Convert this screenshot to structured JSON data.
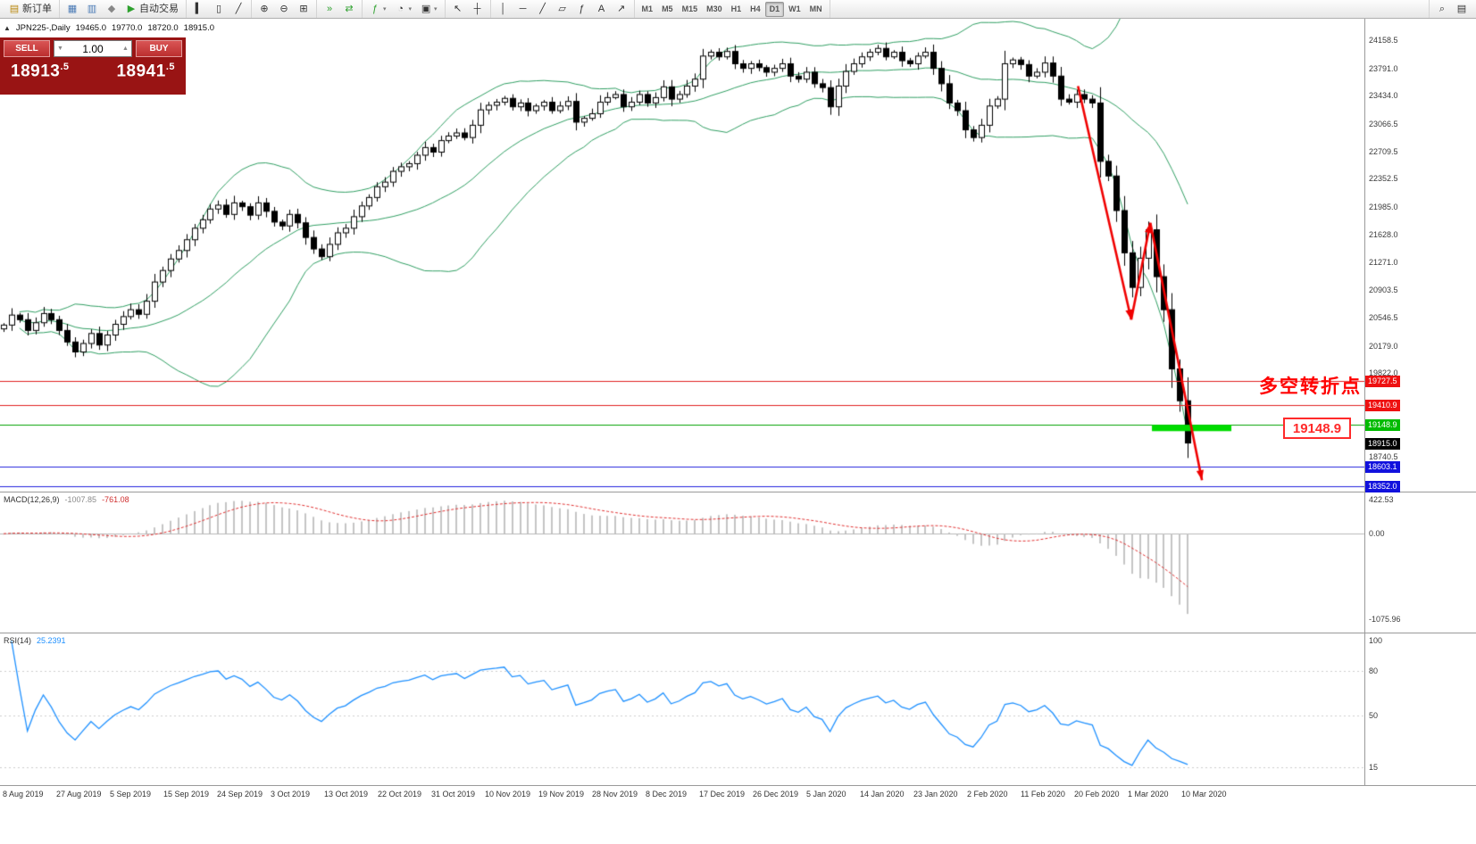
{
  "icons": {
    "one_click_toggle": "▲",
    "new_order": "▤",
    "charts": "▦",
    "profiles": "▥",
    "navigator": "◆",
    "autotrading": "▶",
    "chart_bars": "▍",
    "chart_candles": "▯",
    "chart_line": "╱",
    "zoom_in": "⊕",
    "zoom_out": "⊖",
    "tile_windows": "⊞",
    "auto_scroll": "»",
    "chart_shift": "⇄",
    "indicators": "ƒ",
    "periods": "◔",
    "templates": "▣",
    "cursor": "↖",
    "crosshair": "┼",
    "vline": "│",
    "hline": "─",
    "trendline": "╱",
    "channel": "▱",
    "fibonacci": "ƒ",
    "text": "A",
    "arrows": "↗",
    "search": "⌕",
    "mini_chart": "▤",
    "dropdown": "▾",
    "spinner_up": "▲",
    "spinner_down": "▼"
  },
  "toolbar": {
    "groups": [
      {
        "name": "order",
        "items": [
          {
            "name": "new-order-button",
            "icon": "new_order",
            "icon_color": "#b8860b",
            "label": "新订单"
          }
        ]
      },
      {
        "name": "windows",
        "items": [
          {
            "name": "charts-button",
            "icon": "charts",
            "icon_color": "#4a7ab5"
          },
          {
            "name": "profiles-button",
            "icon": "profiles",
            "icon_color": "#4a7ab5"
          },
          {
            "name": "navigator-button",
            "icon": "navigator",
            "icon_color": "#888888"
          },
          {
            "name": "autotrading-button",
            "icon": "autotrading",
            "icon_color": "#2ea12e",
            "label": "自动交易"
          }
        ]
      },
      {
        "name": "chart-types",
        "items": [
          {
            "name": "bars-chart-button",
            "icon": "chart_bars"
          },
          {
            "name": "candles-chart-button",
            "icon": "chart_candles"
          },
          {
            "name": "line-chart-button",
            "icon": "chart_line"
          }
        ]
      },
      {
        "name": "zoom",
        "items": [
          {
            "name": "zoom-in-button",
            "icon": "zoom_in"
          },
          {
            "name": "zoom-out-button",
            "icon": "zoom_out"
          },
          {
            "name": "tile-windows-button",
            "icon": "tile_windows"
          }
        ]
      },
      {
        "name": "scroll",
        "items": [
          {
            "name": "auto-scroll-button",
            "icon": "auto_scroll",
            "icon_color": "#2ea12e"
          },
          {
            "name": "chart-shift-button",
            "icon": "chart_shift",
            "icon_color": "#2ea12e"
          }
        ]
      },
      {
        "name": "insert",
        "items": [
          {
            "name": "indicators-button",
            "icon": "indicators",
            "icon_color": "#2ea12e",
            "dropdown": true
          },
          {
            "name": "periods-button",
            "icon": "periods",
            "dropdown": true
          },
          {
            "name": "templates-button",
            "icon": "templates",
            "dropdown": true
          }
        ]
      },
      {
        "name": "pointer",
        "items": [
          {
            "name": "cursor-button",
            "icon": "cursor"
          },
          {
            "name": "crosshair-button",
            "icon": "crosshair"
          }
        ]
      },
      {
        "name": "draw",
        "items": [
          {
            "name": "vertical-line-button",
            "icon": "vline"
          },
          {
            "name": "horizontal-line-button",
            "icon": "hline"
          },
          {
            "name": "trendline-button",
            "icon": "trendline"
          },
          {
            "name": "channel-button",
            "icon": "channel"
          },
          {
            "name": "fibonacci-button",
            "icon": "fibonacci"
          },
          {
            "name": "text-button",
            "icon": "text"
          },
          {
            "name": "arrows-button",
            "icon": "arrows"
          }
        ]
      },
      {
        "name": "timeframes",
        "items": [
          {
            "name": "timeframe-m1-button",
            "text": "M1"
          },
          {
            "name": "timeframe-m5-button",
            "text": "M5"
          },
          {
            "name": "timeframe-m15-button",
            "text": "M15"
          },
          {
            "name": "timeframe-m30-button",
            "text": "M30"
          },
          {
            "name": "timeframe-h1-button",
            "text": "H1"
          },
          {
            "name": "timeframe-h4-button",
            "text": "H4"
          },
          {
            "name": "timeframe-d1-button",
            "text": "D1",
            "active": true
          },
          {
            "name": "timeframe-w1-button",
            "text": "W1"
          },
          {
            "name": "timeframe-mn-button",
            "text": "MN"
          }
        ]
      }
    ],
    "right_items": [
      {
        "name": "symbol-search-button",
        "icon": "search"
      },
      {
        "name": "mini-chart-button",
        "icon": "mini_chart"
      }
    ]
  },
  "chart_header": {
    "symbol_period": "JPN225-,Daily",
    "open": "19465.0",
    "high": "19770.0",
    "low": "18720.0",
    "close": "18915.0"
  },
  "trade_panel": {
    "sell_label": "SELL",
    "buy_label": "BUY",
    "volume": "1.00",
    "sell_price": "18913",
    "sell_price_frac": ".5",
    "buy_price": "18941",
    "buy_price_frac": ".5"
  },
  "chart_data": {
    "type": "candlestick",
    "symbol": "JPN225-",
    "timeframe": "Daily",
    "first_open": 20400,
    "last_candle_ohlc": [
      19465.0,
      19770.0,
      18720.0,
      18915.0
    ],
    "closes": [
      20450,
      20580,
      20520,
      20380,
      20480,
      20600,
      20520,
      20380,
      20230,
      20100,
      20210,
      20340,
      20190,
      20320,
      20460,
      20560,
      20650,
      20590,
      20760,
      21010,
      21160,
      21310,
      21420,
      21560,
      21710,
      21820,
      21960,
      22010,
      21890,
      22040,
      21990,
      21880,
      22040,
      21930,
      21790,
      21740,
      21890,
      21780,
      21590,
      21440,
      21340,
      21500,
      21650,
      21710,
      21860,
      22000,
      22110,
      22250,
      22310,
      22450,
      22510,
      22550,
      22660,
      22760,
      22700,
      22850,
      22910,
      22950,
      22890,
      23050,
      23250,
      23310,
      23350,
      23400,
      23290,
      23340,
      23240,
      23300,
      23350,
      23240,
      23300,
      23360,
      23090,
      23140,
      23200,
      23350,
      23410,
      23450,
      23290,
      23350,
      23450,
      23340,
      23410,
      23550,
      23390,
      23450,
      23560,
      23650,
      23950,
      24000,
      23940,
      24010,
      23850,
      23790,
      23850,
      23800,
      23740,
      23790,
      23850,
      23690,
      23650,
      23740,
      23590,
      23540,
      23290,
      23560,
      23750,
      23850,
      23940,
      24000,
      24050,
      23940,
      24000,
      23890,
      23850,
      23950,
      24000,
      23790,
      23590,
      23340,
      23240,
      22990,
      22890,
      23050,
      23300,
      23390,
      23850,
      23900,
      23840,
      23690,
      23740,
      23860,
      23690,
      23390,
      23350,
      23450,
      23390,
      23340,
      22580,
      22390,
      21940,
      21390,
      20940,
      21320,
      21690,
      21080,
      20650,
      19880,
      19465,
      18915
    ],
    "price_axis": {
      "range": [
        18283,
        24436
      ],
      "ticks": [
        "24158.5",
        "23791.0",
        "23434.0",
        "23066.5",
        "22709.5",
        "22352.5",
        "21985.0",
        "21628.0",
        "21271.0",
        "20903.5",
        "20546.5",
        "20179.0",
        "19822.0",
        "18740.5"
      ],
      "markers": [
        {
          "label": "19727.5",
          "bg": "#ee1111",
          "fg": "#ffffff"
        },
        {
          "label": "19410.9",
          "bg": "#ee1111",
          "fg": "#ffffff"
        },
        {
          "label": "19148.9",
          "bg": "#00bb00",
          "fg": "#ffffff"
        },
        {
          "label": "18915.0",
          "bg": "#000000",
          "fg": "#ffffff"
        },
        {
          "label": "18603.1",
          "bg": "#1111dd",
          "fg": "#ffffff"
        },
        {
          "label": "18352.0",
          "bg": "#1111dd",
          "fg": "#ffffff"
        }
      ]
    },
    "hlines": [
      {
        "price": 19727.5,
        "color": "#e02020"
      },
      {
        "price": 19410.9,
        "color": "#e02020"
      },
      {
        "price": 19148.9,
        "color": "#00a000"
      },
      {
        "price": 18603.1,
        "color": "#2020dd"
      },
      {
        "price": 18352.0,
        "color": "#2020dd"
      }
    ],
    "bollinger": {
      "period": 20,
      "deviation": 2,
      "color": "#2f9e62"
    },
    "candle_colors": {
      "bull_fill": "#ffffff",
      "bear_fill": "#000000",
      "border": "#000000"
    },
    "macd": {
      "name": "MACD(12,26,9)",
      "value_main": "-1007.85",
      "value_signal": "-761.08",
      "fast": 12,
      "slow": 26,
      "signal": 9,
      "ticks": [
        "422.53",
        "0.00",
        "-1075.96"
      ],
      "histogram_color": "#c4c4c4",
      "signal_color": "#e03030"
    },
    "rsi": {
      "name": "RSI(14)",
      "value": "25.2391",
      "period": 14,
      "ticks": [
        "100",
        "80",
        "50",
        "15"
      ],
      "levels": [
        80,
        50,
        15
      ],
      "line_color": "#1e90ff"
    },
    "x_labels": [
      "8 Aug 2019",
      "27 Aug 2019",
      "5 Sep 2019",
      "15 Sep 2019",
      "24 Sep 2019",
      "3 Oct 2019",
      "13 Oct 2019",
      "22 Oct 2019",
      "31 Oct 2019",
      "10 Nov 2019",
      "19 Nov 2019",
      "28 Nov 2019",
      "8 Dec 2019",
      "17 Dec 2019",
      "26 Dec 2019",
      "5 Jan 2020",
      "14 Jan 2020",
      "23 Jan 2020",
      "2 Feb 2020",
      "11 Feb 2020",
      "20 Feb 2020",
      "1 Mar 2020",
      "10 Mar 2020"
    ],
    "annotations": {
      "turning_point_text": "多空转折点",
      "support_price_label": "19148.9",
      "support_bar": {
        "price": 19110,
        "from_index": 144.5,
        "to_index": 154.5,
        "color": "#00dc00"
      },
      "arrows": {
        "color": "#f00000",
        "segments": [
          {
            "from": [
              135.2,
              23560
            ],
            "to": [
              141.9,
              20520
            ]
          },
          {
            "from": [
              141.9,
              20520
            ],
            "to": [
              144.3,
              21780
            ]
          },
          {
            "from": [
              144.3,
              21780
            ],
            "to": [
              150.8,
              18430
            ]
          }
        ]
      }
    }
  }
}
